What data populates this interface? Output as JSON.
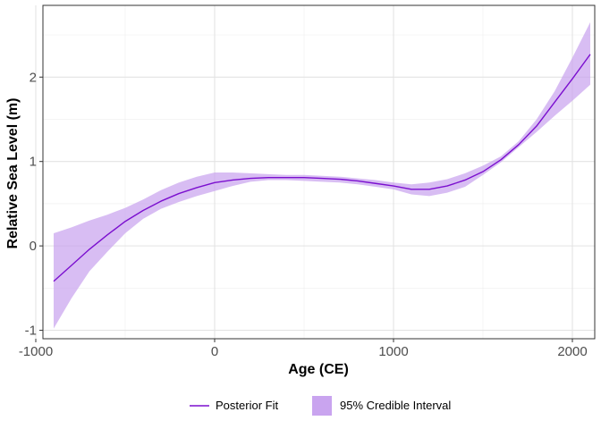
{
  "chart_data": {
    "type": "line",
    "xlabel": "Age (CE)",
    "ylabel": "Relative Sea Level (m)",
    "xlim": [
      -960,
      2125
    ],
    "ylim": [
      -1.1,
      2.85
    ],
    "x_ticks": [
      -1000,
      0,
      1000,
      2000
    ],
    "x_tick_labels": [
      "-1000",
      "0",
      "1000",
      "2000"
    ],
    "y_ticks": [
      -1,
      0,
      1,
      2
    ],
    "y_tick_labels": [
      "-1",
      "0",
      "1",
      "2"
    ],
    "grid": true,
    "legend_position": "bottom",
    "colors": {
      "line": "#7b0fcf",
      "band": "#c9a4ef",
      "grid_major": "#e3e3e3",
      "grid_minor": "#f0f0f0",
      "panel_border": "#333333"
    },
    "series": [
      {
        "name": "Posterior Fit",
        "kind": "line",
        "x": [
          -900,
          -800,
          -700,
          -600,
          -500,
          -400,
          -300,
          -200,
          -100,
          0,
          100,
          200,
          300,
          400,
          500,
          600,
          700,
          800,
          900,
          1000,
          1100,
          1200,
          1300,
          1400,
          1500,
          1600,
          1700,
          1800,
          1900,
          2000,
          2100
        ],
        "y": [
          -0.42,
          -0.23,
          -0.04,
          0.13,
          0.29,
          0.42,
          0.53,
          0.62,
          0.69,
          0.75,
          0.78,
          0.8,
          0.81,
          0.81,
          0.81,
          0.8,
          0.79,
          0.77,
          0.74,
          0.71,
          0.67,
          0.67,
          0.71,
          0.78,
          0.88,
          1.02,
          1.2,
          1.42,
          1.7,
          1.98,
          2.27
        ]
      },
      {
        "name": "95% Credible Interval",
        "kind": "band",
        "x": [
          -900,
          -800,
          -700,
          -600,
          -500,
          -400,
          -300,
          -200,
          -100,
          0,
          100,
          200,
          300,
          400,
          500,
          600,
          700,
          800,
          900,
          1000,
          1100,
          1200,
          1300,
          1400,
          1500,
          1600,
          1700,
          1800,
          1900,
          2000,
          2100
        ],
        "lower": [
          -0.98,
          -0.62,
          -0.3,
          -0.07,
          0.15,
          0.32,
          0.44,
          0.52,
          0.59,
          0.65,
          0.71,
          0.76,
          0.78,
          0.78,
          0.77,
          0.76,
          0.75,
          0.73,
          0.7,
          0.67,
          0.61,
          0.59,
          0.63,
          0.7,
          0.84,
          0.99,
          1.17,
          1.35,
          1.54,
          1.72,
          1.91
        ],
        "upper": [
          0.15,
          0.22,
          0.3,
          0.37,
          0.45,
          0.55,
          0.66,
          0.75,
          0.82,
          0.87,
          0.87,
          0.86,
          0.85,
          0.84,
          0.84,
          0.83,
          0.82,
          0.8,
          0.78,
          0.75,
          0.73,
          0.75,
          0.79,
          0.86,
          0.95,
          1.06,
          1.24,
          1.5,
          1.83,
          2.23,
          2.65
        ]
      }
    ]
  }
}
